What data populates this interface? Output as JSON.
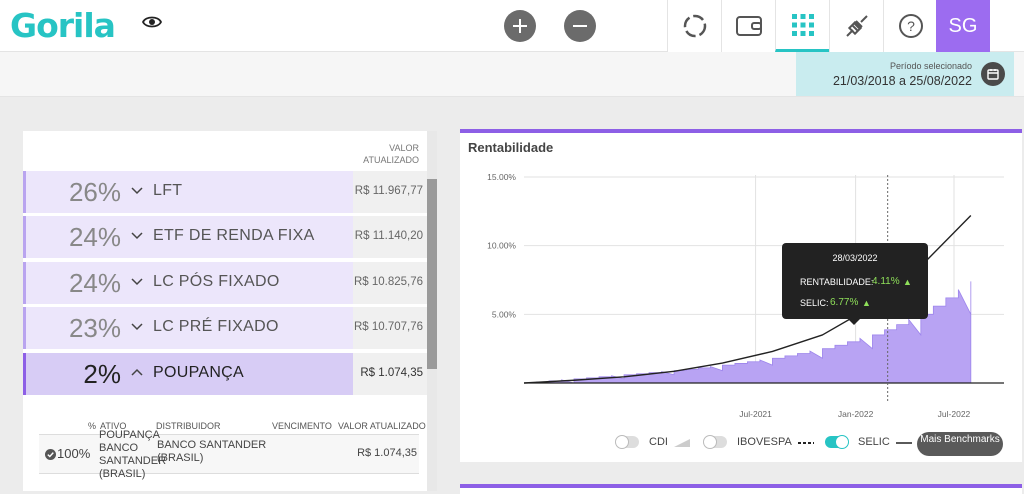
{
  "app": {
    "logo": "Gorila",
    "avatar": "SG"
  },
  "period": {
    "label": "Período selecionado",
    "value": "21/03/2018 a 25/08/2022"
  },
  "assets": {
    "header": "VALOR ATUALIZADO",
    "rows": [
      {
        "pct": "26%",
        "name": "LFT",
        "value": "R$ 11.967,77",
        "expanded": false
      },
      {
        "pct": "24%",
        "name": "ETF DE RENDA FIXA",
        "value": "R$ 11.140,20",
        "expanded": false
      },
      {
        "pct": "24%",
        "name": "LC PÓS FIXADO",
        "value": "R$ 10.825,76",
        "expanded": false
      },
      {
        "pct": "23%",
        "name": "LC PRÉ FIXADO",
        "value": "R$ 10.707,76",
        "expanded": false
      },
      {
        "pct": "2%",
        "name": "POUPANÇA",
        "value": "R$ 1.074,35",
        "expanded": true
      }
    ],
    "detail": {
      "headers": {
        "pct": "%",
        "ativo": "ATIVO",
        "distribuidor": "DISTRIBUIDOR",
        "vencimento": "VENCIMENTO",
        "valor": "VALOR ATUALIZADO"
      },
      "row": {
        "pct": "100%",
        "ativo": "POUPANÇA BANCO SANTANDER (BRASIL)",
        "distribuidor": "BANCO SANTANDER (BRASIL)",
        "vencimento": "",
        "valor": "R$ 1.074,35"
      }
    }
  },
  "chart_data": {
    "type": "area",
    "title": "Rentabilidade",
    "yticks": [
      "15.00%",
      "10.00%",
      "5.00%"
    ],
    "xticks": [
      "Jul-2021",
      "Jan-2022",
      "Jul-2022"
    ],
    "ylim": [
      0,
      15
    ],
    "series": [
      {
        "name": "SELIC",
        "style": "line",
        "color": "#222222",
        "x": [
          "2020-05",
          "2020-08",
          "2020-11",
          "2021-02",
          "2021-05",
          "2021-08",
          "2021-11",
          "2022-02",
          "2022-05",
          "2022-08"
        ],
        "values": [
          0,
          0.2,
          0.45,
          0.85,
          1.45,
          2.3,
          3.5,
          5.6,
          8.5,
          12.2
        ]
      }
    ],
    "area": {
      "color": "#b8a3f3",
      "x": [
        "2020-05",
        "2020-08",
        "2020-11",
        "2021-02",
        "2021-05",
        "2021-08",
        "2021-11",
        "2022-02",
        "2022-05",
        "2022-08"
      ],
      "values": [
        0,
        0.3,
        0.6,
        0.9,
        1.3,
        1.8,
        2.5,
        3.5,
        5.0,
        7.4
      ]
    },
    "tooltip": {
      "date": "28/03/2022",
      "lines": [
        {
          "label": "RENTABILIDADE:",
          "value": "4.11%"
        },
        {
          "label": "SELIC:",
          "value": "6.77%"
        }
      ]
    },
    "legend": [
      {
        "name": "CDI",
        "on": false
      },
      {
        "name": "IBOVESPA",
        "on": false
      },
      {
        "name": "SELIC",
        "on": true
      }
    ],
    "more_button": "Mais Benchmarks"
  }
}
